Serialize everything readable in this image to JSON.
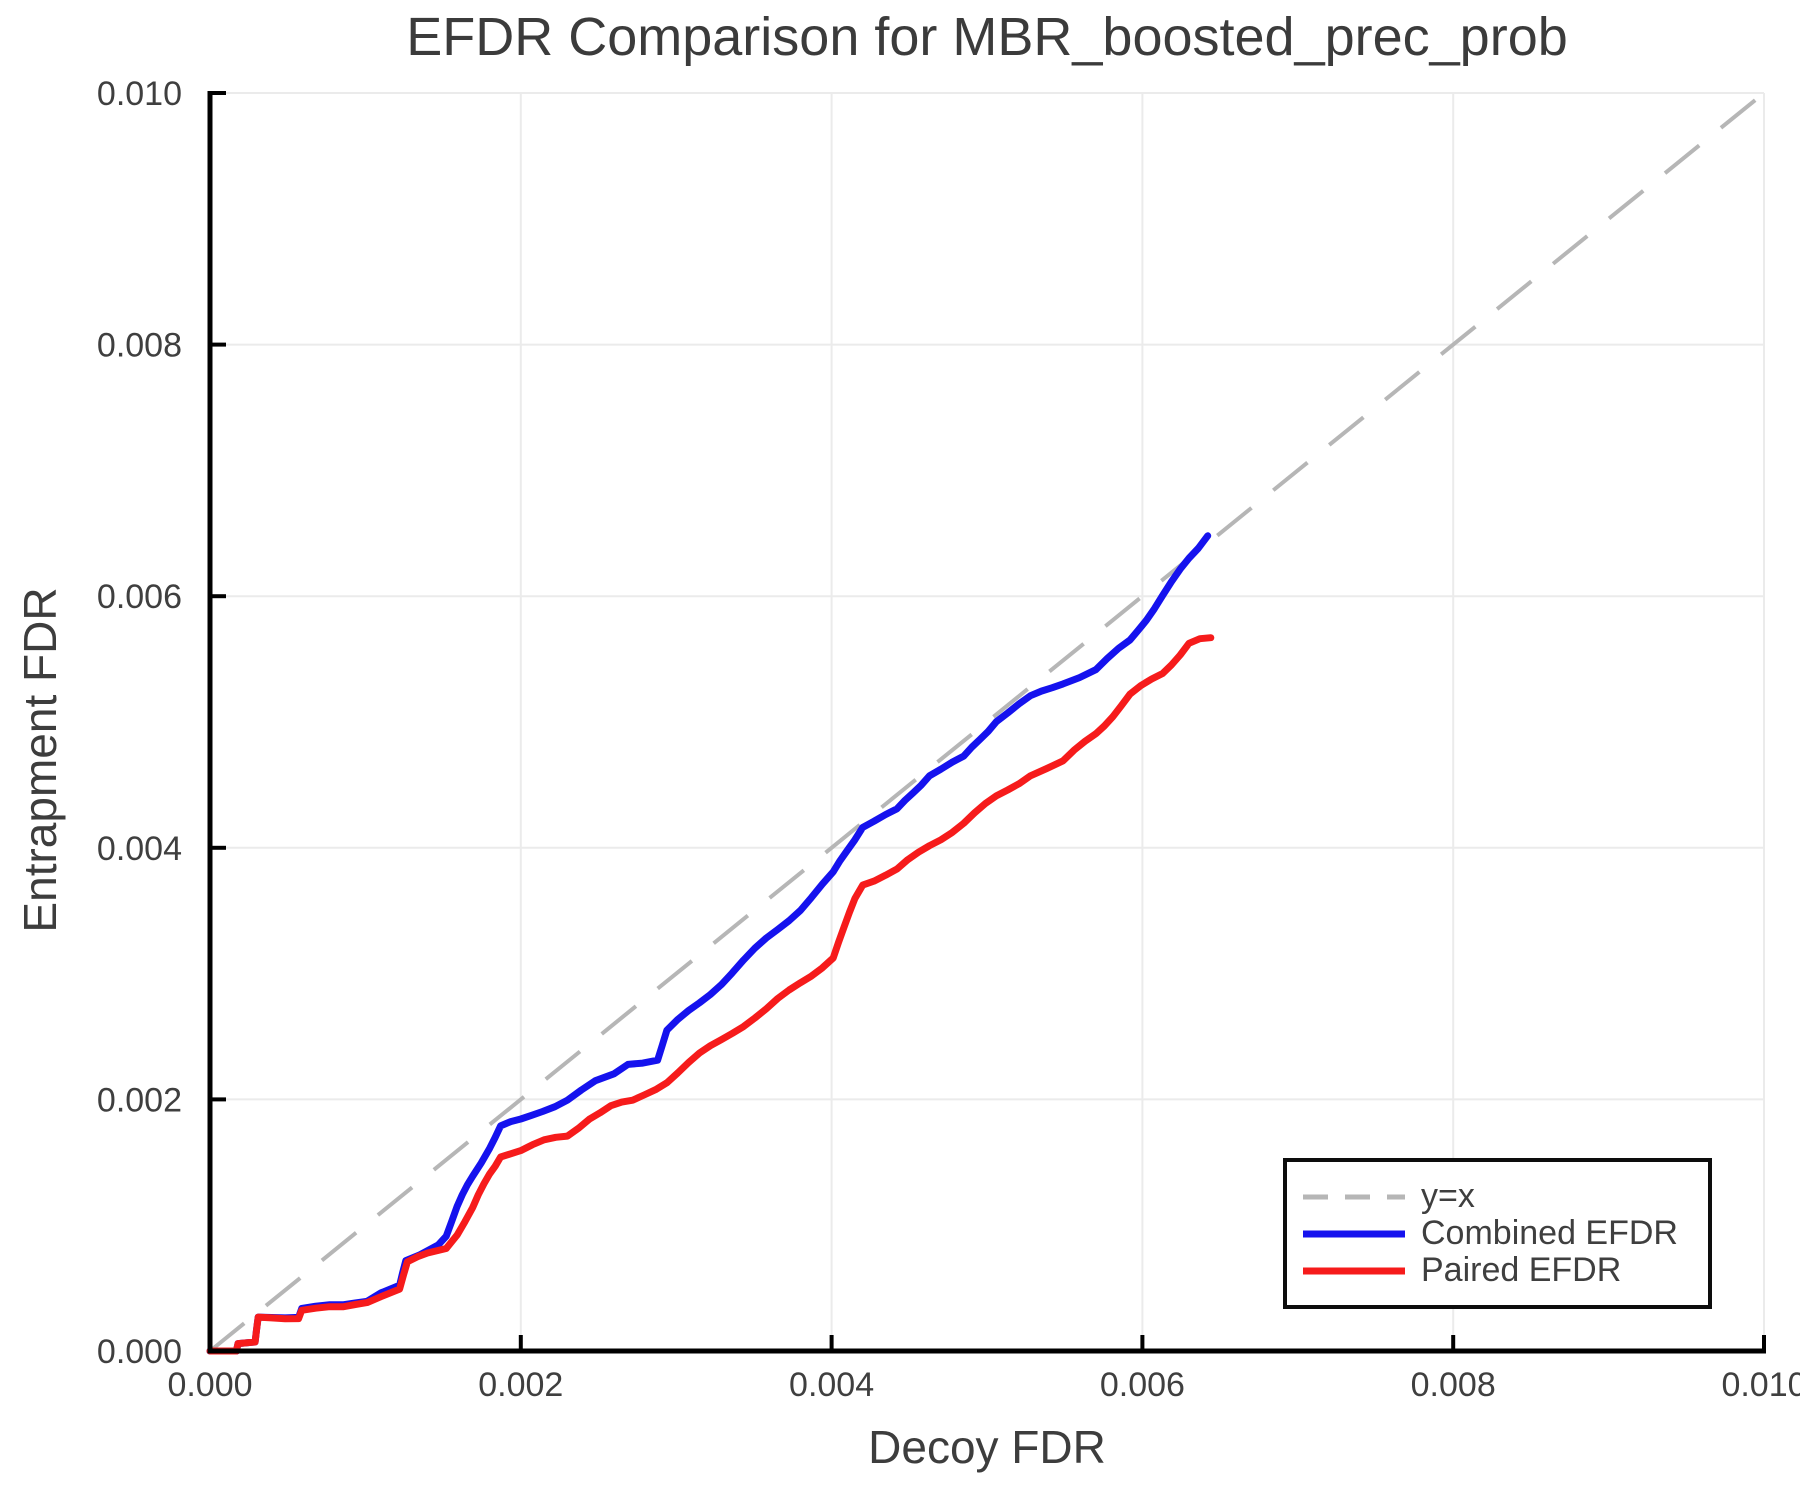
{
  "chart_data": {
    "type": "line",
    "title": "EFDR Comparison for MBR_boosted_prec_prob",
    "xlabel": "Decoy FDR",
    "ylabel": "Entrapment FDR",
    "xlim": [
      0.0,
      0.01
    ],
    "ylim": [
      0.0,
      0.01
    ],
    "grid": true,
    "legend_position": "lower right",
    "x_tick_labels": [
      "0.000",
      "0.002",
      "0.004",
      "0.006",
      "0.008",
      "0.010"
    ],
    "y_tick_labels": [
      "0.000",
      "0.002",
      "0.004",
      "0.006",
      "0.008",
      "0.010"
    ],
    "x_tick_values": [
      0.0,
      0.002,
      0.004,
      0.006,
      0.008,
      0.01
    ],
    "y_tick_values": [
      0.0,
      0.002,
      0.004,
      0.006,
      0.008,
      0.01
    ],
    "series": [
      {
        "name": "y=x",
        "style": "dashed",
        "color": "#b6b6b6",
        "points": [
          [
            0.0,
            0.0
          ],
          [
            0.01,
            0.01
          ]
        ]
      },
      {
        "name": "Combined EFDR",
        "style": "solid",
        "color": "#1512ee",
        "points": [
          [
            0.0,
            0.0
          ],
          [
            0.00017,
            0.0
          ],
          [
            0.00018,
            6e-05
          ],
          [
            0.00029,
            7e-05
          ],
          [
            0.00031,
            0.00026
          ],
          [
            0.00057,
            0.00028
          ],
          [
            0.00059,
            0.000345
          ],
          [
            0.00086,
            0.000355
          ],
          [
            0.00101,
            0.00041
          ],
          [
            0.0011,
            0.00048
          ],
          [
            0.00122,
            0.00053
          ],
          [
            0.00126,
            0.0007
          ],
          [
            0.00135,
            0.00075
          ],
          [
            0.00147,
            0.00086
          ],
          [
            0.00152,
            0.00093
          ],
          [
            0.00159,
            0.00114
          ],
          [
            0.00169,
            0.00139
          ],
          [
            0.0018,
            0.00163
          ],
          [
            0.00187,
            0.00178
          ],
          [
            0.002,
            0.00183
          ],
          [
            0.00214,
            0.00192
          ],
          [
            0.0023,
            0.002
          ],
          [
            0.00248,
            0.00213
          ],
          [
            0.0026,
            0.00219
          ],
          [
            0.00269,
            0.00228
          ],
          [
            0.00288,
            0.00233
          ],
          [
            0.00294,
            0.00254
          ],
          [
            0.00315,
            0.00277
          ],
          [
            0.00336,
            0.00301
          ],
          [
            0.00358,
            0.00327
          ],
          [
            0.0038,
            0.00352
          ],
          [
            0.00401,
            0.00379
          ],
          [
            0.0041,
            0.00398
          ],
          [
            0.0042,
            0.00418
          ],
          [
            0.00442,
            0.00429
          ],
          [
            0.00463,
            0.00459
          ],
          [
            0.00485,
            0.00471
          ],
          [
            0.00506,
            0.00502
          ],
          [
            0.00528,
            0.00519
          ],
          [
            0.00549,
            0.00532
          ],
          [
            0.0057,
            0.00542
          ],
          [
            0.00592,
            0.00564
          ],
          [
            0.00613,
            0.00601
          ],
          [
            0.0063,
            0.00629
          ],
          [
            0.00642,
            0.00648
          ]
        ]
      },
      {
        "name": "Paired EFDR",
        "style": "solid",
        "color": "#f61b1b",
        "points": [
          [
            0.0,
            0.0
          ],
          [
            0.00017,
            0.0
          ],
          [
            0.00018,
            6e-05
          ],
          [
            0.00029,
            7e-05
          ],
          [
            0.00031,
            0.00026
          ],
          [
            0.00057,
            0.00027
          ],
          [
            0.00059,
            0.00033
          ],
          [
            0.00086,
            0.00034
          ],
          [
            0.00101,
            0.0004
          ],
          [
            0.0011,
            0.00045
          ],
          [
            0.00122,
            0.0005
          ],
          [
            0.00127,
            0.00069
          ],
          [
            0.0014,
            0.00078
          ],
          [
            0.00152,
            0.00083
          ],
          [
            0.00159,
            0.00094
          ],
          [
            0.00169,
            0.00113
          ],
          [
            0.0018,
            0.00141
          ],
          [
            0.00187,
            0.00156
          ],
          [
            0.002,
            0.0016
          ],
          [
            0.00215,
            0.00166
          ],
          [
            0.0023,
            0.00171
          ],
          [
            0.00244,
            0.00186
          ],
          [
            0.00258,
            0.00194
          ],
          [
            0.00272,
            0.00198
          ],
          [
            0.00294,
            0.00215
          ],
          [
            0.00315,
            0.00235
          ],
          [
            0.00336,
            0.00254
          ],
          [
            0.00358,
            0.00271
          ],
          [
            0.0038,
            0.00293
          ],
          [
            0.00401,
            0.00313
          ],
          [
            0.00408,
            0.00335
          ],
          [
            0.00415,
            0.0036
          ],
          [
            0.0042,
            0.00372
          ],
          [
            0.00442,
            0.00382
          ],
          [
            0.00463,
            0.00402
          ],
          [
            0.00485,
            0.0042
          ],
          [
            0.00506,
            0.0044
          ],
          [
            0.00528,
            0.00459
          ],
          [
            0.00549,
            0.00468
          ],
          [
            0.0057,
            0.00491
          ],
          [
            0.00592,
            0.00521
          ],
          [
            0.00613,
            0.00539
          ],
          [
            0.0063,
            0.00563
          ],
          [
            0.00644,
            0.00567
          ]
        ]
      }
    ]
  },
  "colors": {
    "grid": "#ebebeb",
    "spine": "#000000",
    "tick_text": "#3f3f3f",
    "title_text": "#3b3b3b"
  }
}
